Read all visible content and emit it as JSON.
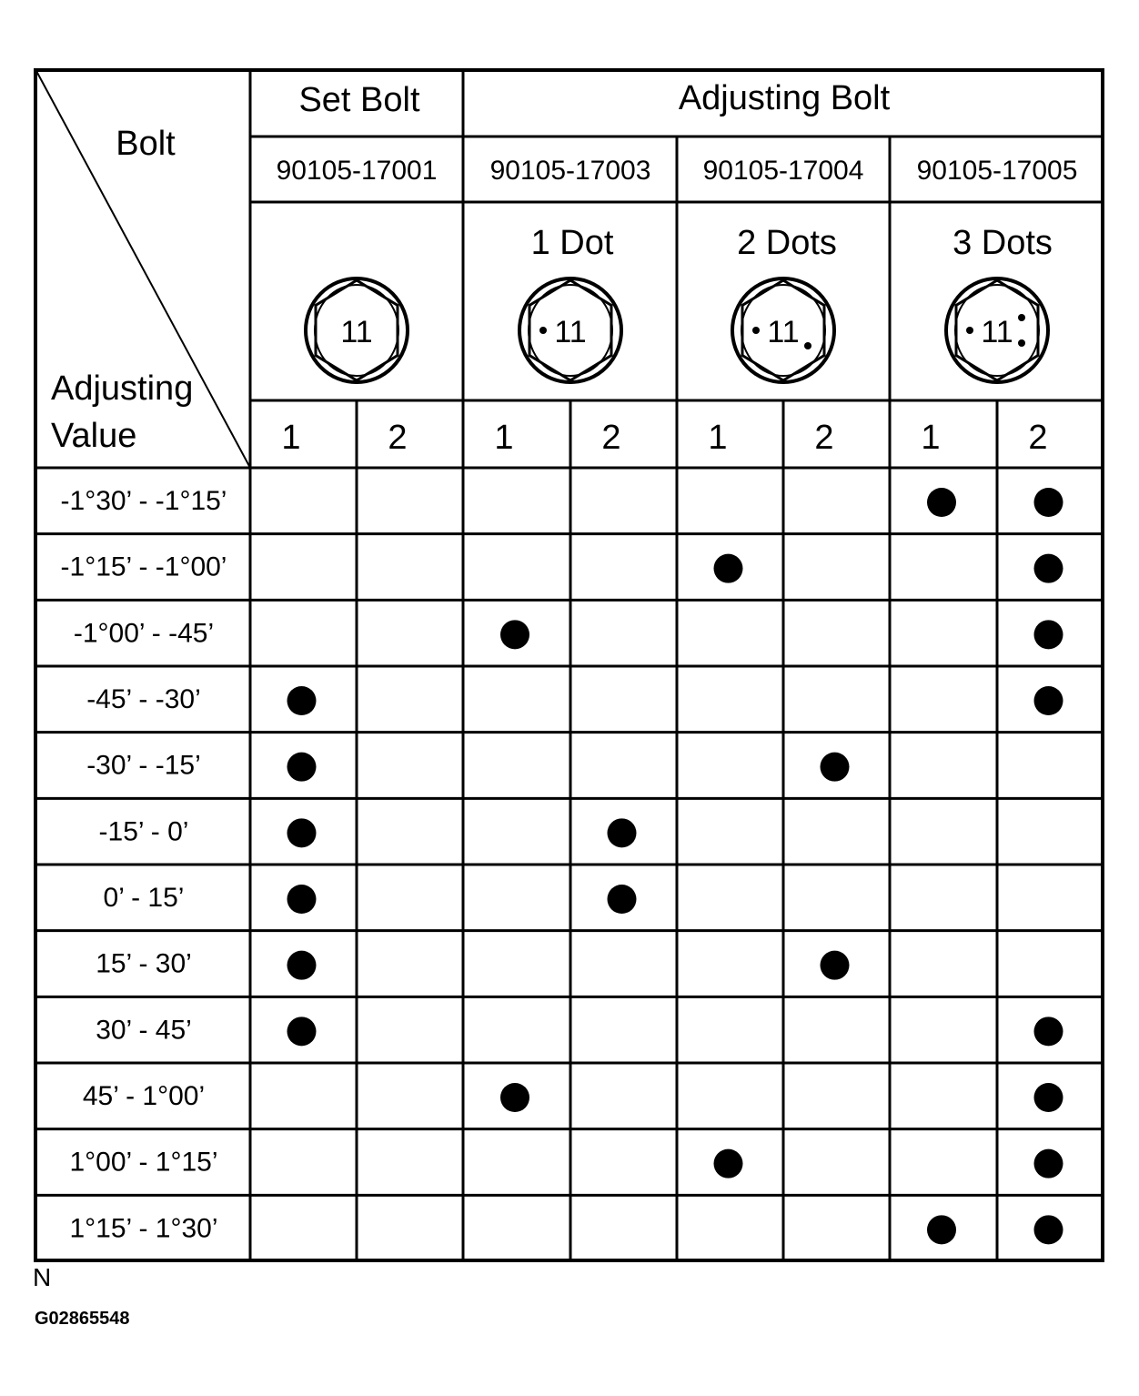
{
  "header": {
    "corner_top": "Bolt",
    "corner_bottom_line1": "Adjusting",
    "corner_bottom_line2": "Value",
    "set_bolt": "Set Bolt",
    "adjusting_bolt": "Adjusting Bolt",
    "part_numbers": [
      "90105-17001",
      "90105-17003",
      "90105-17004",
      "90105-17005"
    ],
    "marks": [
      "",
      "1 Dot",
      "2 Dots",
      "3 Dots"
    ],
    "bolt_head_label": "11",
    "bolt_head_dots": [
      0,
      1,
      2,
      3
    ],
    "sub_columns": [
      "1",
      "2",
      "1",
      "2",
      "1",
      "2",
      "1",
      "2"
    ]
  },
  "rows": [
    {
      "label": "-1°30’ - -1°15’",
      "dots": [
        6,
        7
      ]
    },
    {
      "label": "-1°15’ - -1°00’",
      "dots": [
        4,
        7
      ]
    },
    {
      "label": "-1°00’ - -45’",
      "dots": [
        2,
        7
      ]
    },
    {
      "label": "-45’ - -30’",
      "dots": [
        0,
        7
      ]
    },
    {
      "label": "-30’ - -15’",
      "dots": [
        0,
        5
      ]
    },
    {
      "label": "-15’ - 0’",
      "dots": [
        0,
        3
      ]
    },
    {
      "label": "0’ - 15’",
      "dots": [
        0,
        3
      ]
    },
    {
      "label": "15’ - 30’",
      "dots": [
        0,
        5
      ]
    },
    {
      "label": "30’ - 45’",
      "dots": [
        0,
        7
      ]
    },
    {
      "label": "45’ - 1°00’",
      "dots": [
        2,
        7
      ]
    },
    {
      "label": "1°00’ - 1°15’",
      "dots": [
        4,
        7
      ]
    },
    {
      "label": "1°15’ - 1°30’",
      "dots": [
        6,
        7
      ]
    }
  ],
  "footer": {
    "corner_letter": "N",
    "figure_id": "G02865548"
  }
}
